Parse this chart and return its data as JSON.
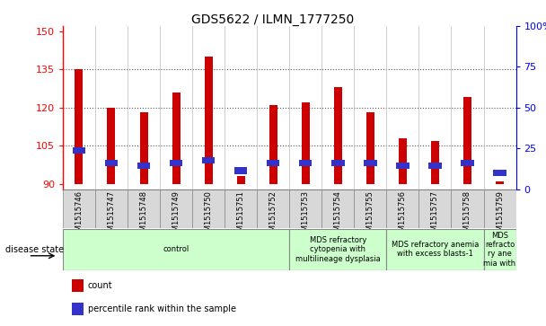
{
  "title": "GDS5622 / ILMN_1777250",
  "samples": [
    "GSM1515746",
    "GSM1515747",
    "GSM1515748",
    "GSM1515749",
    "GSM1515750",
    "GSM1515751",
    "GSM1515752",
    "GSM1515753",
    "GSM1515754",
    "GSM1515755",
    "GSM1515756",
    "GSM1515757",
    "GSM1515758",
    "GSM1515759"
  ],
  "counts": [
    135,
    120,
    118,
    126,
    140,
    93,
    121,
    122,
    128,
    118,
    108,
    107,
    124,
    91
  ],
  "pct_positions": [
    102,
    97,
    96,
    97,
    98,
    94,
    97,
    97,
    97,
    97,
    96,
    96,
    97,
    93
  ],
  "pct_heights": [
    2.5,
    2.5,
    2.5,
    2.5,
    2.5,
    2.5,
    2.5,
    2.5,
    2.5,
    2.5,
    2.5,
    2.5,
    2.5,
    2.5
  ],
  "base": 90,
  "ylim_left": [
    88,
    152
  ],
  "ylim_right": [
    0,
    100
  ],
  "yticks_left": [
    90,
    105,
    120,
    135,
    150
  ],
  "yticks_right": [
    0,
    25,
    50,
    75,
    100
  ],
  "bar_color": "#cc0000",
  "pct_color": "#3333cc",
  "bar_width": 0.25,
  "disease_groups": [
    {
      "label": "control",
      "start": 0,
      "end": 7
    },
    {
      "label": "MDS refractory\ncytopenia with\nmultilineage dysplasia",
      "start": 7,
      "end": 10
    },
    {
      "label": "MDS refractory anemia\nwith excess blasts-1",
      "start": 10,
      "end": 13
    },
    {
      "label": "MDS\nrefracto\nry ane\nmia with",
      "start": 13,
      "end": 14
    }
  ],
  "disease_state_label": "disease state",
  "legend_count_label": "count",
  "legend_pct_label": "percentile rank within the sample",
  "grid_color": "#555555",
  "bg_color": "#ffffff",
  "tick_bg_color": "#d8d8d8",
  "disease_bg_color": "#ccffcc"
}
